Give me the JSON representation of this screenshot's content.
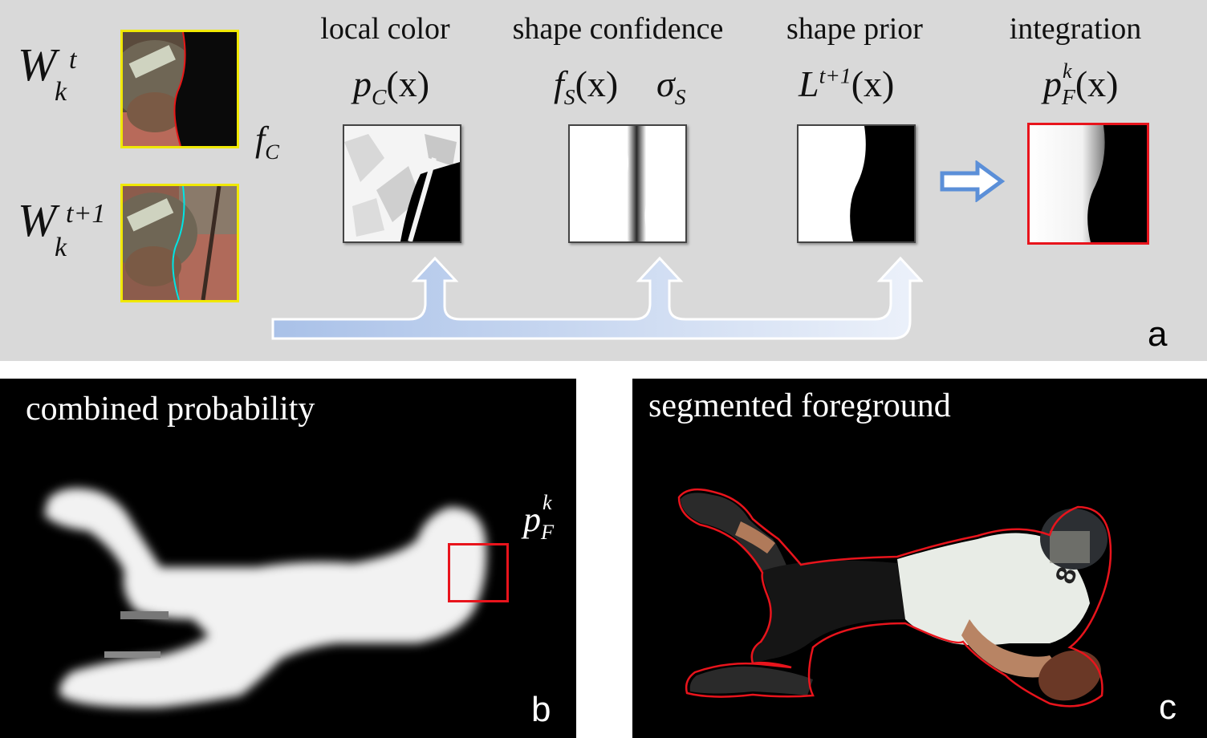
{
  "panel_a": {
    "letter": "a",
    "windows": {
      "top": {
        "symbol": "W",
        "sub": "k",
        "sup": "t"
      },
      "bottom": {
        "symbol": "W",
        "sub": "k",
        "sup": "t+1"
      },
      "feature": {
        "symbol": "f",
        "sub": "C"
      }
    },
    "columns": [
      {
        "title": "local color",
        "math_main": "p",
        "math_sub": "C",
        "math_arg": "(x)"
      },
      {
        "title": "shape confidence",
        "math_main": "f",
        "math_sub": "S",
        "math_arg": "(x)",
        "extra_main": "σ",
        "extra_sub": "S"
      },
      {
        "title": "shape prior",
        "math_main": "L",
        "math_sup": "t+1",
        "math_arg": "(x)"
      },
      {
        "title": "integration",
        "math_main": "p",
        "math_sub": "F",
        "math_sup": "k",
        "math_arg": "(x)"
      }
    ]
  },
  "panel_b": {
    "letter": "b",
    "title": "combined probability",
    "label_main": "p",
    "label_sub": "F",
    "label_sup": "k"
  },
  "panel_c": {
    "letter": "c",
    "title": "segmented foreground",
    "jersey_number": "8"
  },
  "colors": {
    "panel_bg": "#d9d9d9",
    "highlight_red": "#e8141c",
    "frame_yellow": "#f0e800",
    "contour_cyan": "#00e5e5",
    "arrow_blue": "#5b8fd8"
  }
}
